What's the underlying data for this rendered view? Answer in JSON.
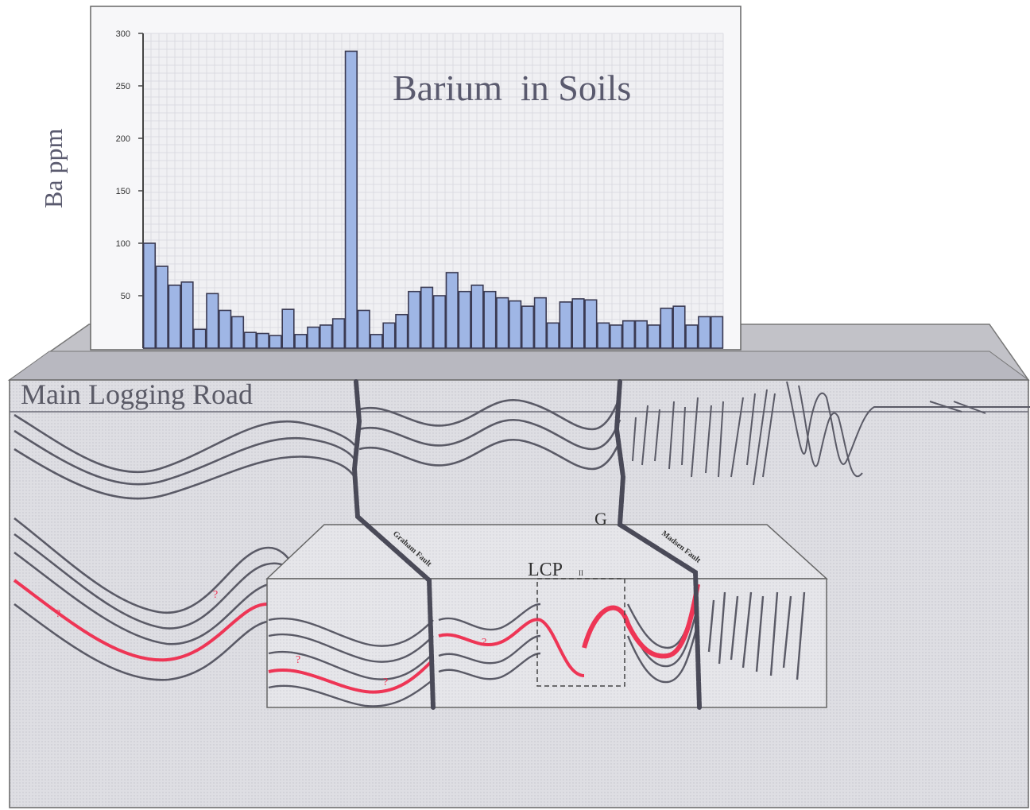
{
  "chart_data": {
    "type": "bar",
    "title": "Barium  in Soils",
    "ylabel": "Ba ppm",
    "ylim": [
      0,
      300
    ],
    "yticks": [
      "300",
      "250",
      "200",
      "150",
      "100",
      "50"
    ],
    "ytick_values": [
      300,
      250,
      200,
      150,
      100,
      50
    ],
    "values": [
      100,
      78,
      60,
      63,
      18,
      52,
      36,
      30,
      15,
      14,
      12,
      37,
      13,
      20,
      22,
      28,
      283,
      36,
      13,
      24,
      32,
      54,
      58,
      50,
      72,
      54,
      60,
      54,
      48,
      45,
      40,
      48,
      24,
      44,
      47,
      46,
      24,
      22,
      26,
      26,
      22,
      38,
      40,
      22,
      30,
      30
    ],
    "bar_color": "#9fb6e5",
    "grid": true
  },
  "section": {
    "road_label": "Main Logging Road",
    "inset_label": "LCP",
    "inset_sub": "II",
    "fault_left": "Graham Fault",
    "fault_right": "Madsen Fault",
    "fault_letter": "G",
    "question_mark": "?",
    "block_color": "#dcdcdc",
    "line_color": "#5a5a66",
    "horizon_color": "#ee3555"
  }
}
